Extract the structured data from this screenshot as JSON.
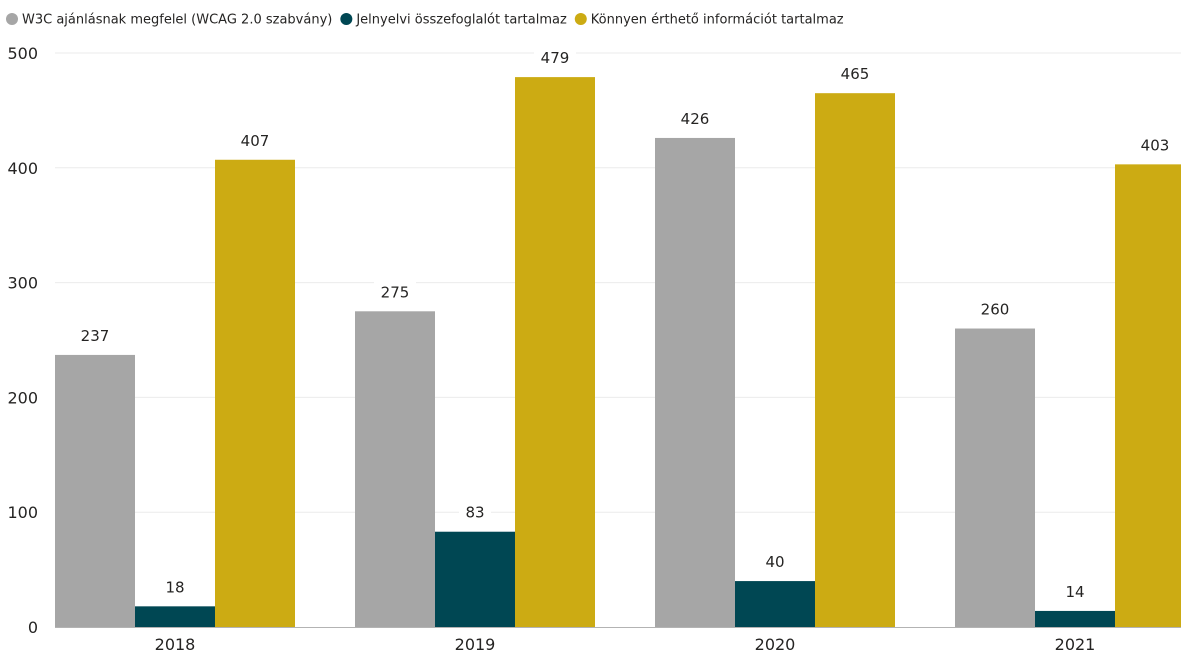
{
  "chart_data": {
    "type": "bar",
    "title": "",
    "xlabel": "",
    "ylabel": "",
    "categories": [
      "2018",
      "2019",
      "2020",
      "2021"
    ],
    "ylim": [
      0,
      500
    ],
    "yticks": [
      0,
      100,
      200,
      300,
      400,
      500
    ],
    "grid": true,
    "legend_position": "top-left",
    "data_labels": true,
    "series": [
      {
        "name": "W3C ajánlásnak megfelel (WCAG 2.0 szabvány)",
        "color": "#a6a6a6",
        "values": [
          237,
          275,
          426,
          260
        ]
      },
      {
        "name": "Jelnyelvi összefoglalót tartalmaz",
        "color": "#004753",
        "values": [
          18,
          83,
          40,
          14
        ]
      },
      {
        "name": "Könnyen érthető információt tartalmaz",
        "color": "#ccab13",
        "values": [
          407,
          479,
          465,
          403
        ]
      }
    ]
  }
}
